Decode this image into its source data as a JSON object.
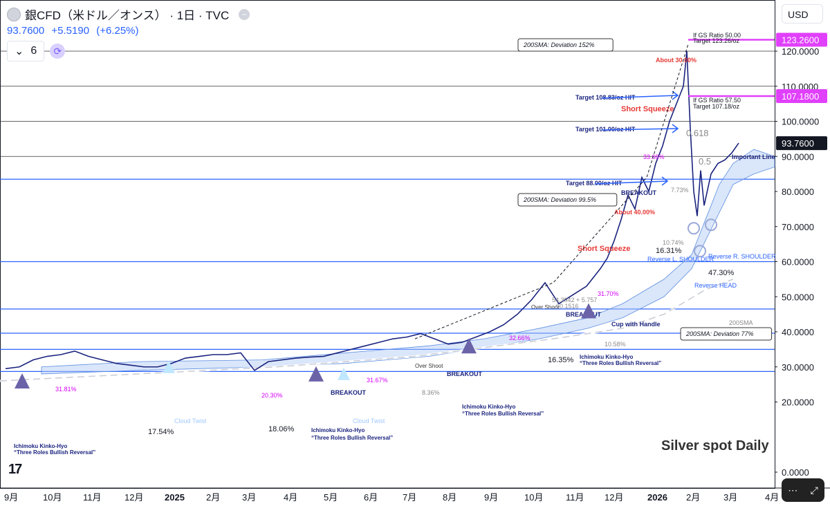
{
  "header": {
    "title": "銀CFD（米ドル／オンス） · 1日 · TVC",
    "last_price": "93.7600",
    "change": "+5.5190",
    "change_pct": "(+6.25%)",
    "indicator_count": "6"
  },
  "currency_label": "USD",
  "watermark": "Silver spot Daily",
  "colors": {
    "price_tag": "#131722",
    "target_tag": "#e040fb",
    "blue_line": "#2962ff",
    "annotation_blue": "#1a237e",
    "annotation_red": "#e53935",
    "annotation_pink": "#d500f9"
  },
  "chart_data": {
    "type": "line",
    "ylim": [
      0,
      125
    ],
    "yticks": [
      "0.0000",
      "20.0000",
      "30.0000",
      "40.0000",
      "50.0000",
      "60.0000",
      "70.0000",
      "80.0000",
      "90.0000",
      "100.0000",
      "110.0000",
      "120.0000"
    ],
    "ytick_values": [
      0,
      20,
      30,
      40,
      50,
      60,
      70,
      80,
      90,
      100,
      110,
      120
    ],
    "xticks": [
      "9月",
      "10月",
      "11月",
      "12月",
      "2025",
      "2月",
      "3月",
      "4月",
      "5月",
      "6月",
      "7月",
      "8月",
      "9月",
      "10月",
      "11月",
      "12月",
      "2026",
      "2月",
      "3月",
      "4月"
    ],
    "price_tags": [
      {
        "label": "123.2600",
        "value": 123.26,
        "style": "target"
      },
      {
        "label": "107.1800",
        "value": 107.18,
        "style": "target"
      },
      {
        "label": "93.7600",
        "value": 93.76,
        "style": "last"
      }
    ],
    "horizontal_levels": [
      28.7,
      35,
      39.6,
      46.5,
      60,
      83.5,
      90,
      100,
      110,
      120
    ],
    "series": [
      {
        "x": [
          0,
          20,
          40,
          60,
          80,
          100,
          120,
          140,
          160,
          180,
          200,
          220,
          240,
          260,
          280,
          300,
          320,
          340,
          360,
          380,
          400,
          420,
          440,
          460,
          480,
          500,
          520,
          540,
          560,
          580,
          600,
          620,
          640,
          660,
          680,
          700,
          720,
          740,
          760,
          780,
          800,
          820,
          840,
          860,
          870,
          880,
          890,
          900,
          910,
          920,
          930,
          940,
          950,
          960,
          970,
          980,
          985,
          990,
          995,
          1000,
          1005,
          1010,
          1020,
          1030,
          1040,
          1050,
          1060
        ],
        "values": [
          29.5,
          30,
          32,
          33,
          33.5,
          34.5,
          33,
          32,
          31,
          30.5,
          30,
          30,
          31,
          32.5,
          33,
          33.5,
          33.5,
          34,
          29,
          31.5,
          32,
          32.5,
          32.8,
          33,
          34,
          35,
          36,
          37,
          38,
          38.5,
          39.5,
          38,
          36.5,
          37,
          38.5,
          40,
          42,
          45,
          49,
          54,
          48,
          50.5,
          53,
          58,
          61,
          66,
          72,
          79,
          75,
          84,
          80,
          88,
          93,
          100,
          105,
          110,
          120,
          98,
          80,
          73,
          86,
          76,
          85,
          88,
          89,
          91,
          93.8
        ]
      }
    ],
    "annotations": [
      "200SMA: Deviation 152%",
      "200SMA: Deviation 99.5%",
      "200SMA: Deviation 77%",
      "If GS Ratio 50.00",
      "Target 123.26/oz",
      "If GS Ratio 57.50",
      "Target 107.18/oz",
      "Target 108.83/oz HIT",
      "Target 101.00/oz HIT",
      "Target 88.00/oz HIT",
      "Short Squeeze",
      "Short Squeeze",
      "About 30.00%",
      "About 40.00%",
      "33.66%",
      "31.70%",
      "32.66%",
      "31.67%",
      "20.30%",
      "31.81%",
      "17.54%",
      "18.06%",
      "16.35%",
      "16.31%",
      "47.30%",
      "10.74%",
      "10.58%",
      "8.36%",
      "7.73%",
      "0.618",
      "0.5",
      "Important Line",
      "BREAKOUT",
      "BREAKOUT",
      "BREAKOUT",
      "BREAKOUT",
      "Over Shoot",
      "Over Shoot",
      "Cup with Handle",
      "Reverse L. SHOULDER",
      "Reverse R. SHOULDER",
      "Reverse HEAD",
      "200SMA",
      "54.3942 + 5.757",
      "60.1516",
      "Cloud Twist",
      "Cloud Twist",
      "Ichimoku Kinko-Hyo",
      "“Three Roles Bullish Reversal”",
      "Ichimoku Kinko-Hyo",
      "“Three Roles Bullish Reversal”",
      "Ichimoku Kinko-Hyo",
      "“Three Roles Bullish Reversal”",
      "Ichimoku Kinko-Hyo",
      "“Three Roles Bullish Reversal”"
    ]
  }
}
